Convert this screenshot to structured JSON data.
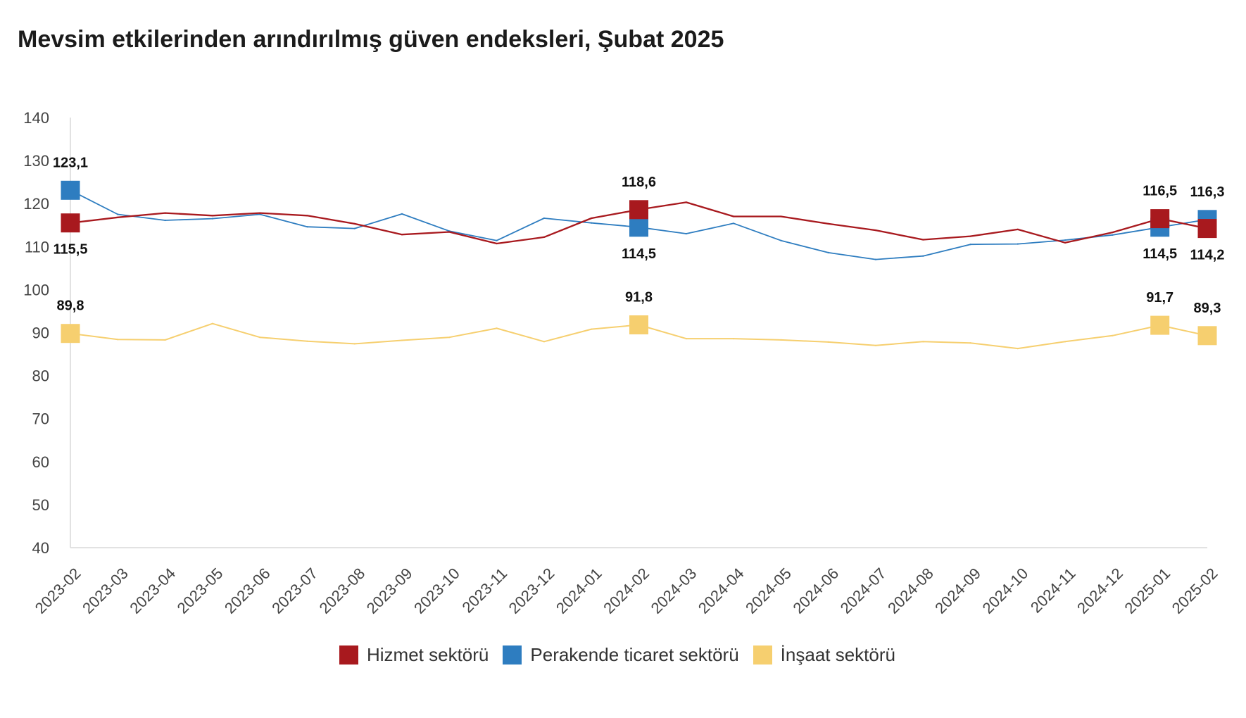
{
  "chart_data": {
    "type": "line",
    "title": "Mevsim etkilerinden arındırılmış güven endeksleri, Şubat 2025",
    "categories": [
      "2023-02",
      "2023-03",
      "2023-04",
      "2023-05",
      "2023-06",
      "2023-07",
      "2023-08",
      "2023-09",
      "2023-10",
      "2023-11",
      "2023-12",
      "2024-01",
      "2024-02",
      "2024-03",
      "2024-04",
      "2024-05",
      "2024-06",
      "2024-07",
      "2024-08",
      "2024-09",
      "2024-10",
      "2024-11",
      "2024-12",
      "2025-01",
      "2025-02"
    ],
    "ylim": [
      40,
      140
    ],
    "yticks": [
      40,
      50,
      60,
      70,
      80,
      90,
      100,
      110,
      120,
      130,
      140
    ],
    "grid": false,
    "legend": "bottom",
    "marked_indices": [
      0,
      12,
      23,
      24
    ],
    "series": [
      {
        "name": "Hizmet sektörü",
        "color": "#a8191e",
        "values": [
          115.5,
          116.8,
          117.8,
          117.2,
          117.8,
          117.2,
          115.3,
          112.8,
          113.4,
          110.7,
          112.2,
          116.6,
          118.6,
          120.3,
          117.0,
          117.0,
          115.3,
          113.8,
          111.6,
          112.4,
          114.0,
          110.9,
          113.3,
          116.5,
          114.2
        ]
      },
      {
        "name": "Perakende ticaret sektörü",
        "color": "#2e7dc0",
        "values": [
          123.1,
          117.5,
          116.1,
          116.5,
          117.5,
          114.6,
          114.2,
          117.6,
          113.6,
          111.4,
          116.6,
          115.5,
          114.5,
          113.0,
          115.4,
          111.4,
          108.6,
          107.0,
          107.8,
          110.5,
          110.6,
          111.5,
          112.7,
          114.5,
          116.3
        ]
      },
      {
        "name": "İnşaat sektörü",
        "color": "#f6cf6f",
        "values": [
          89.8,
          88.4,
          88.3,
          92.1,
          88.9,
          88.0,
          87.4,
          88.2,
          88.9,
          91.0,
          87.9,
          90.8,
          91.8,
          88.6,
          88.6,
          88.3,
          87.8,
          87.0,
          87.9,
          87.6,
          86.3,
          87.9,
          89.3,
          91.7,
          89.3
        ]
      }
    ]
  }
}
